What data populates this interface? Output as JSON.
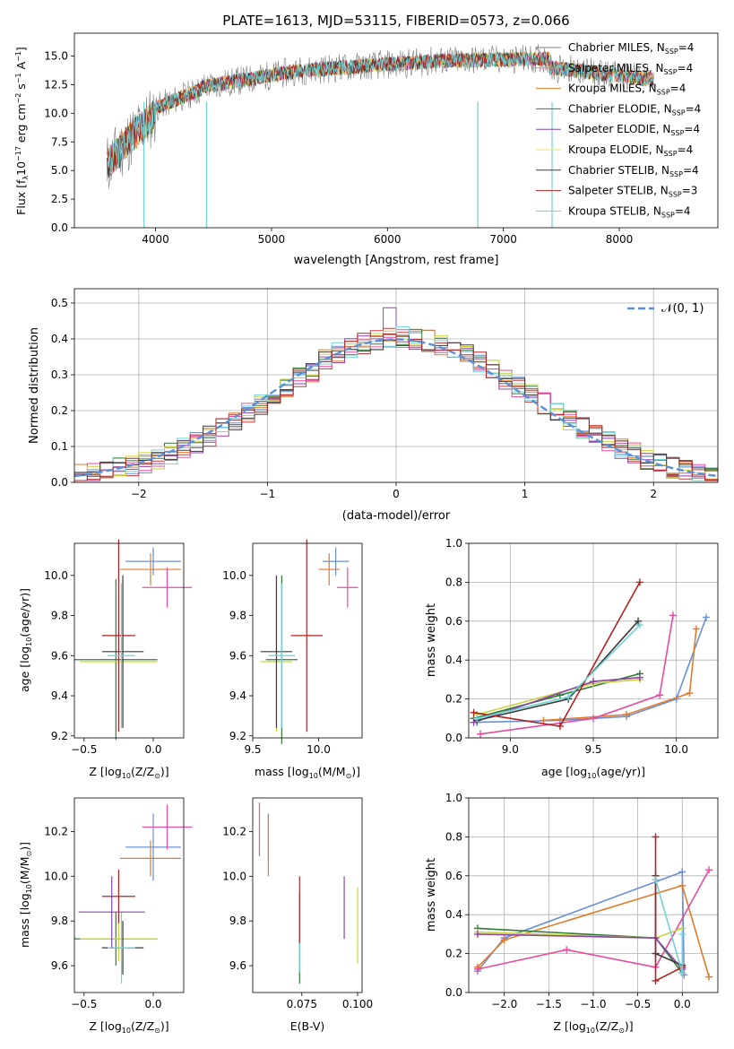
{
  "colors": {
    "c1": "#6a8fd8",
    "c2": "#e07b2a",
    "c3": "#2e7d32",
    "c4": "#c83b3b",
    "c5": "#8e44ad",
    "c6": "#e64ca0",
    "c7": "#7f7f7f",
    "c8": "#c9d43a",
    "c9": "#6fd3d6",
    "c10": "#3b3b3b",
    "c11": "#b22222",
    "gaussian": "#5b8fd6"
  },
  "chart_data": [
    {
      "type": "line",
      "title": "PLATE=1613, MJD=53115, FIBERID=0573, z=0.066",
      "xlabel": "wavelength [Angstrom, rest frame]",
      "ylabel_parts": [
        "Flux [f",
        "λ",
        "10",
        "−17",
        " erg cm",
        "−2",
        " s",
        "−1",
        " A",
        "−1",
        "]"
      ],
      "xlim": [
        3300,
        8850
      ],
      "ylim": [
        0,
        17
      ],
      "xticks": [
        "4000",
        "5000",
        "6000",
        "7000",
        "8000"
      ],
      "yticks": [
        "0.0",
        "2.5",
        "5.0",
        "7.5",
        "10.0",
        "12.5",
        "15.0"
      ],
      "legend_position": "right",
      "series": [
        {
          "label_main": "Chabrier MILES, N",
          "label_sub": "SSP",
          "label_end": "=4",
          "color": "#7f7f7f"
        },
        {
          "label_main": "Salpeter MILES, N",
          "label_sub": "SSP",
          "label_end": "=4",
          "color": "#f08080"
        },
        {
          "label_main": "Kroupa MILES, N",
          "label_sub": "SSP",
          "label_end": "=4",
          "color": "#e07b2a"
        },
        {
          "label_main": "Chabrier ELODIE, N",
          "label_sub": "SSP",
          "label_end": "=4",
          "color": "#2e7d32"
        },
        {
          "label_main": "Salpeter ELODIE, N",
          "label_sub": "SSP",
          "label_end": "=4",
          "color": "#8e44ad"
        },
        {
          "label_main": "Kroupa ELODIE, N",
          "label_sub": "SSP",
          "label_end": "=4",
          "color": "#e8e070"
        },
        {
          "label_main": "Chabrier STELIB, N",
          "label_sub": "SSP",
          "label_end": "=4",
          "color": "#3b3b3b"
        },
        {
          "label_main": "Salpeter STELIB, N",
          "label_sub": "SSP",
          "label_end": "=3",
          "color": "#b22222"
        },
        {
          "label_main": "Kroupa STELIB, N",
          "label_sub": "SSP",
          "label_end": "=4",
          "color": "#6fd3d6"
        }
      ]
    },
    {
      "type": "line",
      "xlabel": "(data-model)/error",
      "ylabel": "Normed distribution",
      "xlim": [
        -2.5,
        2.5
      ],
      "ylim": [
        0,
        0.54
      ],
      "xticks": [
        -2,
        -1,
        0,
        1,
        2
      ],
      "xtick_labels": [
        "−2",
        "−1",
        "0",
        "1",
        "2"
      ],
      "yticks": [
        0,
        0.1,
        0.2,
        0.3,
        0.4,
        0.5
      ],
      "ytick_labels": [
        "0.0",
        "0.1",
        "0.2",
        "0.3",
        "0.4",
        "0.5"
      ],
      "grid": true,
      "legend": {
        "label": "𝒩(0, 1)",
        "position": "top-right"
      },
      "bin_edges": [
        -2.5,
        -2.4,
        -2.3,
        -2.2,
        -2.1,
        -2.0,
        -1.9,
        -1.8,
        -1.7,
        -1.6,
        -1.5,
        -1.4,
        -1.3,
        -1.2,
        -1.1,
        -1.0,
        -0.9,
        -0.8,
        -0.7,
        -0.6,
        -0.5,
        -0.4,
        -0.3,
        -0.2,
        -0.1,
        0.0,
        0.1,
        0.2,
        0.3,
        0.4,
        0.5,
        0.6,
        0.7,
        0.8,
        0.9,
        1.0,
        1.1,
        1.2,
        1.3,
        1.4,
        1.5,
        1.6,
        1.7,
        1.8,
        1.9,
        2.0,
        2.1,
        2.2,
        2.3,
        2.4,
        2.5
      ],
      "base_counts": [
        0.022,
        0.025,
        0.03,
        0.038,
        0.045,
        0.055,
        0.065,
        0.08,
        0.095,
        0.11,
        0.128,
        0.15,
        0.17,
        0.195,
        0.215,
        0.24,
        0.265,
        0.29,
        0.31,
        0.34,
        0.36,
        0.375,
        0.388,
        0.398,
        0.405,
        0.405,
        0.4,
        0.395,
        0.38,
        0.37,
        0.355,
        0.335,
        0.315,
        0.29,
        0.265,
        0.245,
        0.22,
        0.195,
        0.175,
        0.15,
        0.13,
        0.112,
        0.095,
        0.08,
        0.065,
        0.052,
        0.04,
        0.032,
        0.025,
        0.02
      ]
    },
    {
      "type": "scatter",
      "xlabel": "Z [log",
      "xlabel_sub": "10",
      "xlabel_tail": "(Z/Z",
      "xlabel_sun": "⊙",
      "xlabel_end": ")]",
      "ylabel": "age  [log",
      "ylabel_sub": "10",
      "ylabel_tail": "(age/yr)]",
      "xlim": [
        -0.57,
        0.22
      ],
      "ylim": [
        9.19,
        10.16
      ],
      "xticks": [
        -0.5,
        0.0
      ],
      "xtick_labels": [
        "−0.5",
        "0.0"
      ],
      "yticks": [
        9.2,
        9.4,
        9.6,
        9.8,
        10.0
      ],
      "ytick_labels": [
        "9.2",
        "9.4",
        "9.6",
        "9.8",
        "10.0"
      ],
      "points": [
        {
          "x": 0.0,
          "y": 10.07,
          "xerr": 0.2,
          "yerr": 0.07,
          "color": "#6a8fd8"
        },
        {
          "x": -0.02,
          "y": 10.03,
          "xerr": 0.22,
          "yerr": 0.08,
          "color": "#e07b2a"
        },
        {
          "x": 0.1,
          "y": 9.94,
          "xerr": 0.18,
          "yerr": 0.1,
          "color": "#e64ca0"
        },
        {
          "x": -0.27,
          "y": 9.58,
          "xerr": 0.3,
          "yerr": 0.4,
          "color": "#2e7d32"
        },
        {
          "x": -0.25,
          "y": 9.57,
          "xerr": 0.28,
          "yerr": 0.35,
          "color": "#c9d43a"
        },
        {
          "x": -0.22,
          "y": 9.62,
          "xerr": 0.15,
          "yerr": 0.38,
          "color": "#3b3b3b"
        },
        {
          "x": -0.25,
          "y": 9.7,
          "xerr": 0.12,
          "yerr": 0.48,
          "color": "#b22222"
        },
        {
          "x": -0.23,
          "y": 9.6,
          "xerr": 0.1,
          "yerr": 0.36,
          "color": "#6fd3d6"
        }
      ]
    },
    {
      "type": "scatter",
      "xlabel": "mass [log",
      "xlabel_sub": "10",
      "xlabel_tail": "(M/M",
      "xlabel_sun": "⊙",
      "xlabel_end": ")]",
      "xlim": [
        9.5,
        10.33
      ],
      "ylim": [
        9.19,
        10.16
      ],
      "xticks": [
        9.5,
        10.0
      ],
      "xtick_labels": [
        "9.5",
        "10.0"
      ],
      "yticks": [
        9.2,
        9.4,
        9.6,
        9.8,
        10.0
      ],
      "ytick_labels": [
        "9.2",
        "9.4",
        "9.6",
        "9.8",
        "10.0"
      ],
      "points": [
        {
          "x": 10.13,
          "y": 10.07,
          "xerr": 0.1,
          "yerr": 0.07,
          "color": "#6a8fd8"
        },
        {
          "x": 10.08,
          "y": 10.03,
          "xerr": 0.08,
          "yerr": 0.08,
          "color": "#e07b2a"
        },
        {
          "x": 10.22,
          "y": 9.94,
          "xerr": 0.08,
          "yerr": 0.1,
          "color": "#e64ca0"
        },
        {
          "x": 9.72,
          "y": 9.58,
          "xerr": 0.12,
          "yerr": 0.42,
          "color": "#2e7d32"
        },
        {
          "x": 9.68,
          "y": 9.57,
          "xerr": 0.12,
          "yerr": 0.35,
          "color": "#c9d43a"
        },
        {
          "x": 9.68,
          "y": 9.62,
          "xerr": 0.12,
          "yerr": 0.38,
          "color": "#3b3b3b"
        },
        {
          "x": 9.91,
          "y": 9.7,
          "xerr": 0.12,
          "yerr": 0.48,
          "color": "#b22222"
        },
        {
          "x": 9.72,
          "y": 9.6,
          "xerr": 0.1,
          "yerr": 0.36,
          "color": "#6fd3d6"
        }
      ]
    },
    {
      "type": "line",
      "xlabel": "age  [log",
      "xlabel_sub": "10",
      "xlabel_tail": "(age/yr)]",
      "ylabel": "mass weight",
      "xlim": [
        8.75,
        10.25
      ],
      "ylim": [
        0,
        1
      ],
      "xticks": [
        9.0,
        9.5,
        10.0
      ],
      "xtick_labels": [
        "9.0",
        "9.5",
        "10.0"
      ],
      "yticks": [
        0,
        0.2,
        0.4,
        0.6,
        0.8,
        1.0
      ],
      "ytick_labels": [
        "0.0",
        "0.2",
        "0.4",
        "0.6",
        "0.8",
        "1.0"
      ],
      "grid": true,
      "series": [
        {
          "color": "#6a8fd8",
          "x": [
            8.8,
            9.3,
            9.7,
            10.0,
            10.18
          ],
          "y": [
            0.08,
            0.09,
            0.11,
            0.2,
            0.62
          ]
        },
        {
          "color": "#e07b2a",
          "x": [
            9.2,
            9.7,
            10.08,
            10.12
          ],
          "y": [
            0.09,
            0.12,
            0.23,
            0.56
          ]
        },
        {
          "color": "#e64ca0",
          "x": [
            8.82,
            9.5,
            9.9,
            9.98
          ],
          "y": [
            0.02,
            0.1,
            0.22,
            0.63
          ]
        },
        {
          "color": "#2e7d32",
          "x": [
            8.78,
            9.3,
            9.78
          ],
          "y": [
            0.1,
            0.22,
            0.33
          ]
        },
        {
          "color": "#c9d43a",
          "x": [
            8.8,
            9.5,
            9.78
          ],
          "y": [
            0.12,
            0.28,
            0.3
          ]
        },
        {
          "color": "#8e44ad",
          "x": [
            8.78,
            9.5,
            9.78
          ],
          "y": [
            0.08,
            0.29,
            0.31
          ]
        },
        {
          "color": "#3b3b3b",
          "x": [
            8.8,
            9.35,
            9.77
          ],
          "y": [
            0.09,
            0.2,
            0.6
          ]
        },
        {
          "color": "#b22222",
          "x": [
            8.78,
            9.3,
            9.78
          ],
          "y": [
            0.13,
            0.06,
            0.8
          ]
        },
        {
          "color": "#6fd3d6",
          "x": [
            8.8,
            9.35,
            9.78
          ],
          "y": [
            0.1,
            0.21,
            0.58
          ]
        }
      ]
    },
    {
      "type": "scatter",
      "xlabel": "Z [log",
      "xlabel_sub": "10",
      "xlabel_tail": "(Z/Z",
      "xlabel_sun": "⊙",
      "xlabel_end": ")]",
      "ylabel": "mass [log",
      "ylabel_sub": "10",
      "ylabel_tail": "(M/M",
      "ylabel_sun": "⊙",
      "ylabel_end": ")]",
      "xlim": [
        -0.57,
        0.22
      ],
      "ylim": [
        9.48,
        10.35
      ],
      "xticks": [
        -0.5,
        0.0
      ],
      "xtick_labels": [
        "−0.5",
        "0.0"
      ],
      "yticks": [
        9.6,
        9.8,
        10.0,
        10.2
      ],
      "ytick_labels": [
        "9.6",
        "9.8",
        "10.0",
        "10.2"
      ],
      "points": [
        {
          "x": 0.0,
          "y": 10.13,
          "xerr": 0.2,
          "yerr": 0.15,
          "color": "#6a8fd8"
        },
        {
          "x": -0.02,
          "y": 10.08,
          "xerr": 0.22,
          "yerr": 0.08,
          "color": "#e07b2a"
        },
        {
          "x": 0.1,
          "y": 10.22,
          "xerr": 0.18,
          "yerr": 0.1,
          "color": "#e64ca0"
        },
        {
          "x": -0.27,
          "y": 9.72,
          "xerr": 0.3,
          "yerr": 0.12,
          "color": "#2e7d32"
        },
        {
          "x": -0.25,
          "y": 9.72,
          "xerr": 0.28,
          "yerr": 0.1,
          "color": "#c9d43a"
        },
        {
          "x": -0.22,
          "y": 9.68,
          "xerr": 0.15,
          "yerr": 0.12,
          "color": "#3b3b3b"
        },
        {
          "x": -0.25,
          "y": 9.91,
          "xerr": 0.12,
          "yerr": 0.12,
          "color": "#b22222"
        },
        {
          "x": -0.23,
          "y": 9.68,
          "xerr": 0.1,
          "yerr": 0.16,
          "color": "#6fd3d6"
        },
        {
          "x": -0.3,
          "y": 9.84,
          "xerr": 0.24,
          "yerr": 0.16,
          "color": "#8e44ad"
        }
      ]
    },
    {
      "type": "scatter",
      "xlabel": "E(B-V)",
      "xlim": [
        0.053,
        0.102
      ],
      "ylim": [
        9.48,
        10.35
      ],
      "xticks": [
        0.075,
        0.1
      ],
      "xtick_labels": [
        "0.075",
        "0.100"
      ],
      "yticks": [
        9.6,
        9.8,
        10.0,
        10.2
      ],
      "ytick_labels": [
        "9.6",
        "9.8",
        "10.0",
        "10.2"
      ],
      "points": [
        {
          "x": 0.06,
          "y": 10.18,
          "yerr": 0.1,
          "color": "#6a8fd8"
        },
        {
          "x": 0.06,
          "y": 10.14,
          "yerr": 0.14,
          "color": "#e07b2a"
        },
        {
          "x": 0.056,
          "y": 10.21,
          "yerr": 0.12,
          "color": "#e64ca0"
        },
        {
          "x": 0.074,
          "y": 9.72,
          "yerr": 0.2,
          "color": "#2e7d32"
        },
        {
          "x": 0.074,
          "y": 9.73,
          "yerr": 0.16,
          "color": "#6fd3d6"
        },
        {
          "x": 0.074,
          "y": 9.85,
          "yerr": 0.15,
          "color": "#b22222"
        },
        {
          "x": 0.094,
          "y": 9.86,
          "yerr": 0.14,
          "color": "#8e44ad"
        },
        {
          "x": 0.1,
          "y": 9.78,
          "yerr": 0.17,
          "color": "#c9d43a"
        }
      ]
    },
    {
      "type": "line",
      "xlabel": "Z [log",
      "xlabel_sub": "10",
      "xlabel_tail": "(Z/Z",
      "xlabel_sun": "⊙",
      "xlabel_end": ")]",
      "ylabel": "mass weight",
      "xlim": [
        -2.4,
        0.4
      ],
      "ylim": [
        0,
        1
      ],
      "xticks": [
        -2.0,
        -1.5,
        -1.0,
        -0.5,
        0.0
      ],
      "xtick_labels": [
        "−2.0",
        "−1.5",
        "−1.0",
        "−0.5",
        "0.0"
      ],
      "yticks": [
        0,
        0.2,
        0.4,
        0.6,
        0.8,
        1.0
      ],
      "ytick_labels": [
        "0.0",
        "0.2",
        "0.4",
        "0.6",
        "0.8",
        "1.0"
      ],
      "grid": true,
      "series": [
        {
          "color": "#6a8fd8",
          "x": [
            -2.3,
            -2.0,
            0.0,
            0.02
          ],
          "y": [
            0.11,
            0.28,
            0.62,
            0.09
          ]
        },
        {
          "color": "#e07b2a",
          "x": [
            -2.3,
            -2.0,
            0.0,
            0.3
          ],
          "y": [
            0.13,
            0.27,
            0.55,
            0.08
          ]
        },
        {
          "color": "#e64ca0",
          "x": [
            -2.3,
            -1.3,
            -0.3,
            0.3
          ],
          "y": [
            0.12,
            0.22,
            0.13,
            0.63
          ]
        },
        {
          "color": "#2e7d32",
          "x": [
            -2.3,
            -0.3,
            0.0
          ],
          "y": [
            0.33,
            0.28,
            0.1
          ]
        },
        {
          "color": "#c9d43a",
          "x": [
            -2.3,
            -0.3,
            0.0
          ],
          "y": [
            0.31,
            0.28,
            0.33
          ]
        },
        {
          "color": "#8e44ad",
          "x": [
            -2.3,
            -0.3,
            0.0
          ],
          "y": [
            0.3,
            0.28,
            0.12
          ]
        },
        {
          "color": "#3b3b3b",
          "x": [
            -0.3,
            -0.3,
            0.0
          ],
          "y": [
            0.6,
            0.2,
            0.14
          ]
        },
        {
          "color": "#b22222",
          "x": [
            -0.3,
            -0.3,
            0.0
          ],
          "y": [
            0.8,
            0.06,
            0.13
          ]
        },
        {
          "color": "#6fd3d6",
          "x": [
            -0.3,
            0.0,
            0.0
          ],
          "y": [
            0.58,
            0.1,
            0.3
          ]
        }
      ]
    }
  ]
}
